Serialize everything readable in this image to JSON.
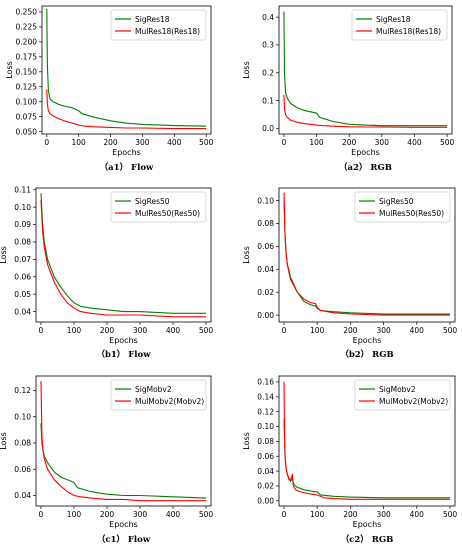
{
  "chart_data": [
    {
      "id": "a1",
      "type": "line",
      "caption": "（a1） Flow",
      "xlabel": "Epochs",
      "ylabel": "Loss",
      "xlim": [
        -15,
        515
      ],
      "ylim": [
        0.046,
        0.26
      ],
      "xticks": [
        "0",
        "100",
        "200",
        "300",
        "400",
        "500"
      ],
      "yticks": [
        "0.050",
        "0.075",
        "0.100",
        "0.125",
        "0.150",
        "0.175",
        "0.200",
        "0.225",
        "0.250"
      ],
      "legend_position": "top-right",
      "series": [
        {
          "name": "SigRes18",
          "color": "#008000",
          "x": [
            0,
            2,
            5,
            10,
            20,
            40,
            60,
            80,
            100,
            110,
            150,
            200,
            250,
            300,
            400,
            500
          ],
          "y": [
            0.255,
            0.16,
            0.118,
            0.105,
            0.1,
            0.095,
            0.092,
            0.09,
            0.085,
            0.08,
            0.074,
            0.068,
            0.064,
            0.062,
            0.06,
            0.059
          ]
        },
        {
          "name": "MulRes18(Res18)",
          "color": "#ff0000",
          "x": [
            0,
            2,
            5,
            10,
            20,
            40,
            60,
            80,
            100,
            120,
            150,
            200,
            250,
            300,
            400,
            500
          ],
          "y": [
            0.12,
            0.095,
            0.085,
            0.08,
            0.076,
            0.071,
            0.067,
            0.064,
            0.061,
            0.059,
            0.058,
            0.057,
            0.056,
            0.056,
            0.055,
            0.055
          ]
        }
      ]
    },
    {
      "id": "a2",
      "type": "line",
      "caption": "（a2） RGB",
      "xlabel": "Epochs",
      "ylabel": "Loss",
      "xlim": [
        -15,
        515
      ],
      "ylim": [
        -0.02,
        0.44
      ],
      "xticks": [
        "0",
        "100",
        "200",
        "300",
        "400",
        "500"
      ],
      "yticks": [
        "0.0",
        "0.1",
        "0.2",
        "0.3",
        "0.4"
      ],
      "legend_position": "top-right",
      "series": [
        {
          "name": "SigRes18",
          "color": "#008000",
          "x": [
            0,
            2,
            5,
            10,
            20,
            40,
            60,
            80,
            100,
            110,
            150,
            200,
            250,
            300,
            400,
            500
          ],
          "y": [
            0.42,
            0.2,
            0.13,
            0.11,
            0.09,
            0.075,
            0.065,
            0.06,
            0.055,
            0.04,
            0.025,
            0.015,
            0.012,
            0.01,
            0.01,
            0.01
          ]
        },
        {
          "name": "MulRes18(Res18)",
          "color": "#ff0000",
          "x": [
            0,
            2,
            5,
            10,
            20,
            40,
            60,
            80,
            100,
            120,
            150,
            200,
            250,
            300,
            400,
            500
          ],
          "y": [
            0.12,
            0.07,
            0.05,
            0.04,
            0.03,
            0.022,
            0.018,
            0.015,
            0.012,
            0.01,
            0.008,
            0.006,
            0.005,
            0.005,
            0.004,
            0.004
          ]
        }
      ]
    },
    {
      "id": "b1",
      "type": "line",
      "caption": "（b1） Flow",
      "xlabel": "Epochs",
      "ylabel": "Loss",
      "xlim": [
        -15,
        515
      ],
      "ylim": [
        0.034,
        0.111
      ],
      "xticks": [
        "0",
        "100",
        "200",
        "300",
        "400",
        "500"
      ],
      "yticks": [
        "0.04",
        "0.05",
        "0.06",
        "0.07",
        "0.08",
        "0.09",
        "0.10",
        "0.11"
      ],
      "legend_position": "top-right",
      "series": [
        {
          "name": "SigRes50",
          "color": "#008000",
          "x": [
            0,
            5,
            10,
            20,
            40,
            60,
            80,
            100,
            120,
            150,
            200,
            250,
            300,
            400,
            500
          ],
          "y": [
            0.108,
            0.09,
            0.08,
            0.07,
            0.06,
            0.054,
            0.049,
            0.045,
            0.043,
            0.042,
            0.041,
            0.04,
            0.04,
            0.039,
            0.039
          ]
        },
        {
          "name": "MulRes50(Res50)",
          "color": "#ff0000",
          "x": [
            0,
            5,
            10,
            20,
            40,
            60,
            80,
            100,
            120,
            150,
            200,
            250,
            300,
            400,
            500
          ],
          "y": [
            0.104,
            0.086,
            0.077,
            0.067,
            0.057,
            0.05,
            0.045,
            0.042,
            0.04,
            0.039,
            0.038,
            0.038,
            0.038,
            0.037,
            0.037
          ]
        }
      ]
    },
    {
      "id": "b2",
      "type": "line",
      "caption": "（b2） RGB",
      "xlabel": "Epochs",
      "ylabel": "Loss",
      "xlim": [
        -15,
        515
      ],
      "ylim": [
        -0.006,
        0.111
      ],
      "xticks": [
        "0",
        "100",
        "200",
        "300",
        "400",
        "500"
      ],
      "yticks": [
        "0.00",
        "0.02",
        "0.04",
        "0.06",
        "0.08",
        "0.10"
      ],
      "legend_position": "top-right",
      "series": [
        {
          "name": "SigRes50",
          "color": "#008000",
          "x": [
            0,
            3,
            6,
            10,
            20,
            40,
            60,
            80,
            95,
            100,
            110,
            150,
            200,
            300,
            400,
            500
          ],
          "y": [
            0.1,
            0.07,
            0.055,
            0.045,
            0.033,
            0.02,
            0.012,
            0.009,
            0.008,
            0.006,
            0.004,
            0.003,
            0.002,
            0.001,
            0.001,
            0.001
          ]
        },
        {
          "name": "MulRes50(Res50)",
          "color": "#ff0000",
          "x": [
            0,
            3,
            6,
            10,
            20,
            40,
            60,
            80,
            95,
            100,
            110,
            150,
            200,
            300,
            400,
            500
          ],
          "y": [
            0.107,
            0.072,
            0.055,
            0.044,
            0.031,
            0.02,
            0.014,
            0.011,
            0.01,
            0.007,
            0.004,
            0.002,
            0.001,
            0.0,
            0.0,
            0.0
          ]
        }
      ]
    },
    {
      "id": "c1",
      "type": "line",
      "caption": "（c1） Flow",
      "xlabel": "Epochs",
      "ylabel": "Loss",
      "xlim": [
        -15,
        515
      ],
      "ylim": [
        0.032,
        0.131
      ],
      "xticks": [
        "0",
        "100",
        "200",
        "300",
        "400",
        "500"
      ],
      "yticks": [
        "0.04",
        "0.06",
        "0.08",
        "0.10",
        "0.12"
      ],
      "legend_position": "top-right",
      "series": [
        {
          "name": "SigMobv2",
          "color": "#008000",
          "x": [
            0,
            3,
            6,
            10,
            20,
            40,
            60,
            80,
            100,
            110,
            150,
            200,
            250,
            300,
            400,
            500
          ],
          "y": [
            0.095,
            0.08,
            0.075,
            0.07,
            0.065,
            0.058,
            0.054,
            0.052,
            0.05,
            0.046,
            0.043,
            0.041,
            0.04,
            0.04,
            0.039,
            0.038
          ]
        },
        {
          "name": "MulMobv2(Mobv2)",
          "color": "#ff0000",
          "x": [
            0,
            3,
            6,
            10,
            20,
            40,
            60,
            80,
            100,
            120,
            150,
            200,
            250,
            300,
            400,
            500
          ],
          "y": [
            0.127,
            0.085,
            0.075,
            0.068,
            0.06,
            0.052,
            0.047,
            0.043,
            0.04,
            0.039,
            0.038,
            0.037,
            0.037,
            0.036,
            0.036,
            0.036
          ]
        }
      ]
    },
    {
      "id": "c2",
      "type": "line",
      "caption": "（c2） RGB",
      "xlabel": "Epochs",
      "ylabel": "Loss",
      "xlim": [
        -15,
        515
      ],
      "ylim": [
        -0.007,
        0.168
      ],
      "xticks": [
        "0",
        "100",
        "200",
        "300",
        "400",
        "500"
      ],
      "yticks": [
        "0.00",
        "0.02",
        "0.04",
        "0.06",
        "0.08",
        "0.10",
        "0.12",
        "0.14",
        "0.16"
      ],
      "legend_position": "top-right",
      "series": [
        {
          "name": "SigMobv2",
          "color": "#008000",
          "x": [
            0,
            3,
            6,
            10,
            20,
            25,
            30,
            40,
            60,
            80,
            100,
            110,
            150,
            200,
            300,
            500
          ],
          "y": [
            0.11,
            0.06,
            0.045,
            0.035,
            0.026,
            0.03,
            0.022,
            0.018,
            0.015,
            0.013,
            0.012,
            0.008,
            0.006,
            0.005,
            0.004,
            0.004
          ]
        },
        {
          "name": "MulMobv2(Mobv2)",
          "color": "#ff0000",
          "x": [
            0,
            2,
            4,
            8,
            15,
            22,
            25,
            28,
            35,
            50,
            70,
            100,
            120,
            150,
            200,
            300,
            500
          ],
          "y": [
            0.16,
            0.08,
            0.055,
            0.04,
            0.028,
            0.03,
            0.036,
            0.02,
            0.015,
            0.012,
            0.01,
            0.008,
            0.004,
            0.003,
            0.002,
            0.002,
            0.002
          ]
        }
      ]
    }
  ]
}
